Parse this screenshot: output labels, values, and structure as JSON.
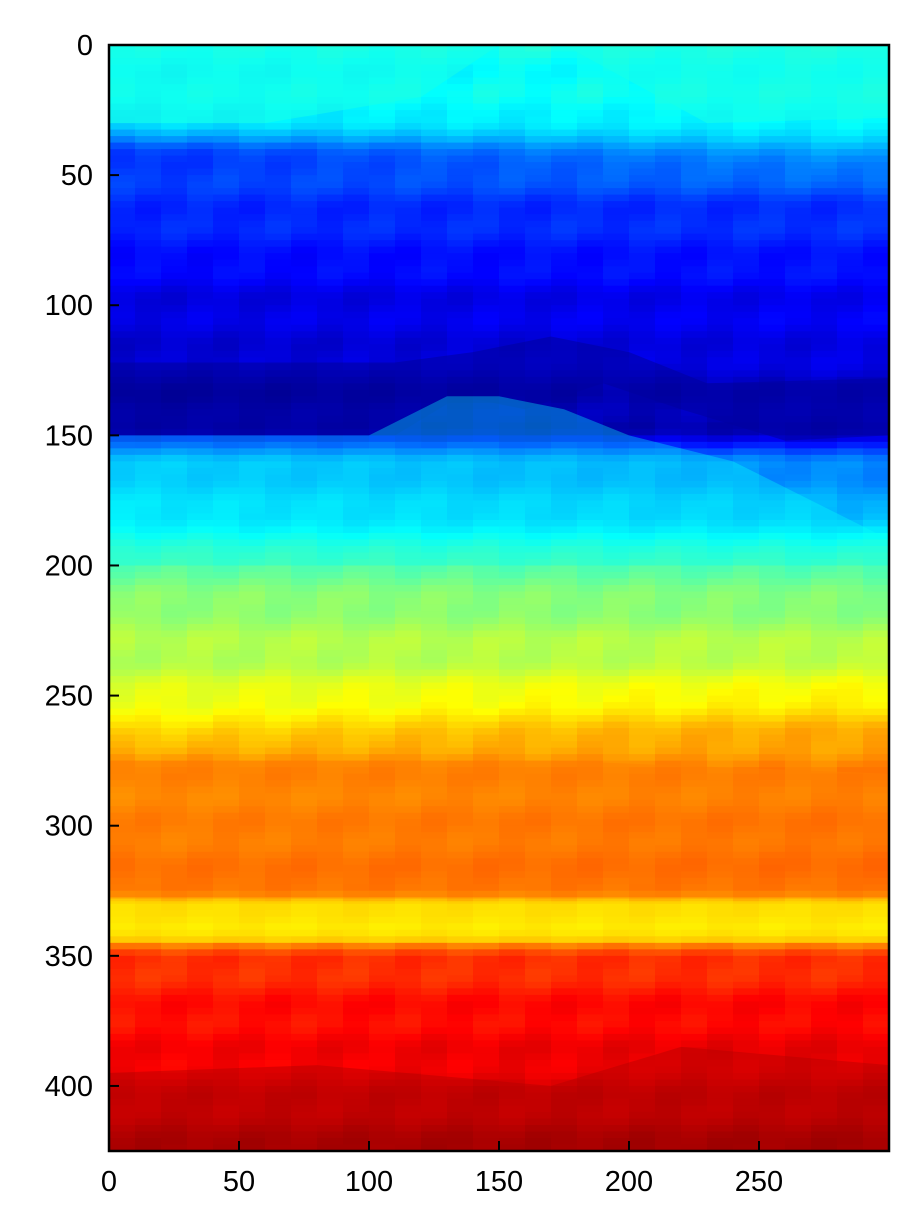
{
  "chart_data": {
    "type": "heatmap",
    "title": "",
    "xlabel": "",
    "ylabel": "",
    "colormap": "jet",
    "xlim": [
      0,
      300
    ],
    "ylim": [
      425,
      0
    ],
    "y_inverted": true,
    "grid": false,
    "colorbar": false,
    "x_ticks": [
      0,
      50,
      100,
      150,
      200,
      250
    ],
    "y_ticks": [
      0,
      50,
      100,
      150,
      200,
      250,
      300,
      350,
      400
    ],
    "jet_stops": [
      "#000080",
      "#0000ff",
      "#0080ff",
      "#00ffff",
      "#80ff80",
      "#ffff00",
      "#ff8000",
      "#ff0000",
      "#800000"
    ],
    "layers_note": "normalized colormap value (0=dark blue, 1=dark red) by depth row, estimated from the image",
    "depth_profile": {
      "depth": [
        0,
        30,
        40,
        60,
        80,
        95,
        120,
        135,
        148,
        160,
        180,
        200,
        220,
        240,
        255,
        262,
        275,
        290,
        310,
        325,
        330,
        340,
        350,
        370,
        390,
        410,
        425
      ],
      "value_left": [
        0.38,
        0.36,
        0.18,
        0.17,
        0.14,
        0.1,
        0.08,
        0.02,
        0.05,
        0.3,
        0.34,
        0.47,
        0.53,
        0.56,
        0.62,
        0.64,
        0.74,
        0.74,
        0.76,
        0.78,
        0.66,
        0.64,
        0.82,
        0.86,
        0.88,
        0.93,
        0.97
      ],
      "value_right": [
        0.4,
        0.38,
        0.3,
        0.18,
        0.15,
        0.12,
        0.1,
        0.06,
        0.05,
        0.25,
        0.3,
        0.46,
        0.52,
        0.58,
        0.66,
        0.7,
        0.74,
        0.76,
        0.78,
        0.78,
        0.66,
        0.64,
        0.82,
        0.87,
        0.9,
        0.94,
        0.98
      ]
    }
  }
}
